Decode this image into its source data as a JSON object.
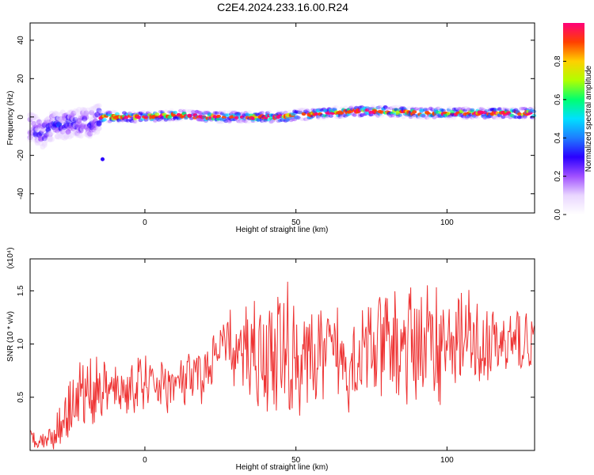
{
  "title": "C2E4.2024.233.16.00.R24",
  "colors": {
    "snr_line": "#ee3333",
    "colormap": [
      "#ffffff",
      "#e9d6ff",
      "#a050ff",
      "#2a00ff",
      "#1e7dff",
      "#00e0ff",
      "#00ff70",
      "#b0ff00",
      "#ffd000",
      "#ff4000",
      "#ff007a"
    ]
  },
  "chart_data": [
    {
      "type": "heatmap",
      "name": "spectrogram",
      "xlabel": "Height of straight line (km)",
      "ylabel": "Frequency (Hz)",
      "xlim": [
        -38,
        129
      ],
      "ylim": [
        -50,
        49
      ],
      "xticks": [
        0,
        50,
        100
      ],
      "xtick_labels": [
        "0",
        "50",
        "100"
      ],
      "yticks": [
        40,
        20,
        0,
        -20,
        -40
      ],
      "ytick_labels": [
        "40",
        "20",
        "0",
        "-20",
        "-40"
      ],
      "ridge": [
        [
          -38,
          -5
        ],
        [
          -34,
          -9
        ],
        [
          -30,
          -4
        ],
        [
          -26,
          -4
        ],
        [
          -22,
          -3
        ],
        [
          -18,
          -3
        ],
        [
          -15,
          0
        ],
        [
          -10,
          0
        ],
        [
          0,
          0
        ],
        [
          10,
          1
        ],
        [
          20,
          0
        ],
        [
          30,
          0
        ],
        [
          40,
          0
        ],
        [
          46,
          0
        ],
        [
          50,
          1
        ],
        [
          60,
          2
        ],
        [
          70,
          3
        ],
        [
          80,
          3
        ],
        [
          90,
          2
        ],
        [
          100,
          2
        ],
        [
          110,
          2
        ],
        [
          120,
          2
        ],
        [
          129,
          2
        ]
      ],
      "outlier": [
        -14,
        -22
      ],
      "colorbar": {
        "label": "Normalized spectral amplitude",
        "range": [
          0,
          1
        ],
        "ticks": [
          0.0,
          0.2,
          0.4,
          0.6,
          0.8
        ],
        "tick_labels": [
          "0.0",
          "0.2",
          "0.4",
          "0.6",
          "0.8"
        ]
      },
      "grid": false
    },
    {
      "type": "line",
      "name": "snr",
      "xlabel": "Height of straight line (km)",
      "ylabel": "SNR (10 * v/v)",
      "multiplier_label": "(x10⁴)",
      "xlim": [
        -38,
        129
      ],
      "ylim": [
        0,
        1.8
      ],
      "xticks": [
        0,
        50,
        100
      ],
      "xtick_labels": [
        "0",
        "50",
        "100"
      ],
      "yticks": [
        0.5,
        1.0,
        1.5
      ],
      "ytick_labels": [
        "0.5",
        "1.0",
        "1.5"
      ],
      "envelope_x": [
        -38,
        -34,
        -30,
        -28,
        -25,
        -20,
        -15,
        -10,
        -5,
        0,
        5,
        10,
        15,
        20,
        25,
        28,
        30,
        35,
        40,
        45,
        47,
        50,
        55,
        60,
        65,
        70,
        75,
        80,
        85,
        90,
        95,
        100,
        105,
        110,
        115,
        120,
        125,
        129
      ],
      "envelope_mean": [
        0.12,
        0.1,
        0.14,
        0.25,
        0.45,
        0.55,
        0.58,
        0.55,
        0.58,
        0.62,
        0.62,
        0.62,
        0.65,
        0.72,
        0.95,
        1.02,
        0.85,
        0.98,
        0.88,
        0.95,
        0.9,
        0.85,
        0.85,
        0.9,
        0.88,
        0.85,
        0.95,
        0.98,
        0.95,
        1.02,
        1.0,
        1.0,
        1.05,
        0.98,
        0.98,
        1.0,
        1.02,
        1.05
      ],
      "envelope_amplitude": [
        0.08,
        0.08,
        0.12,
        0.25,
        0.3,
        0.3,
        0.25,
        0.22,
        0.22,
        0.25,
        0.22,
        0.22,
        0.22,
        0.25,
        0.2,
        0.28,
        0.25,
        0.45,
        0.45,
        0.55,
        0.7,
        0.45,
        0.4,
        0.35,
        0.45,
        0.4,
        0.45,
        0.45,
        0.45,
        0.5,
        0.5,
        0.45,
        0.45,
        0.35,
        0.3,
        0.3,
        0.3,
        0.2
      ],
      "grid": false
    }
  ]
}
